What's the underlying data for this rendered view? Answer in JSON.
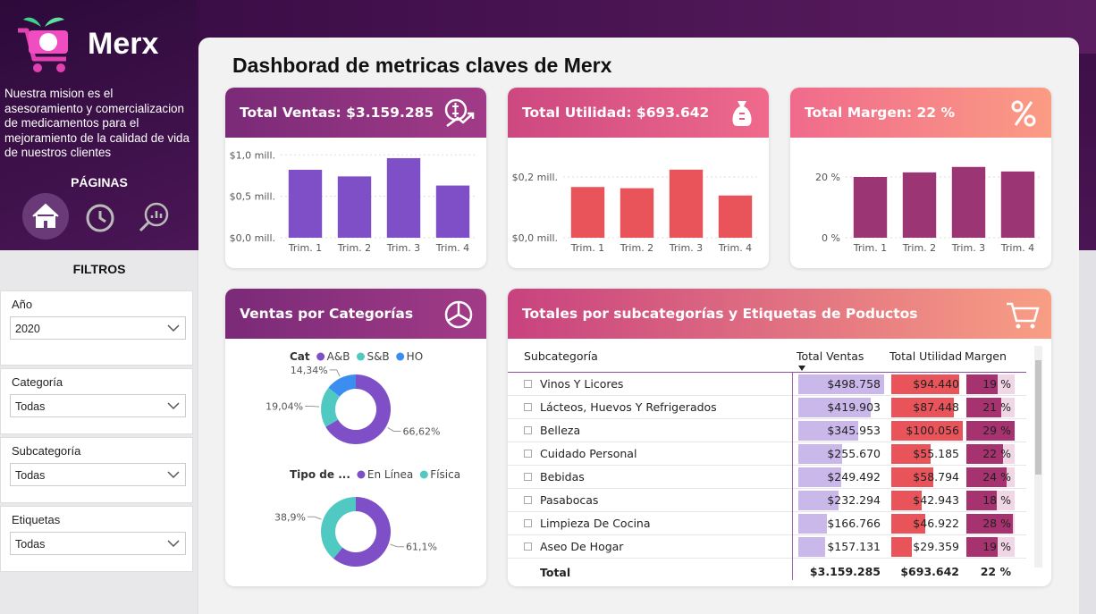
{
  "sidebar": {
    "brand": "Merx",
    "mission": "Nuestra mision es el asesoramiento y comercializacion de medicamentos para el mejoramiento de la calidad de vida de nuestros clientes",
    "pages_title": "PÁGINAS",
    "filters_title": "FILTROS",
    "filters": [
      {
        "label": "Año",
        "value": "2020"
      },
      {
        "label": "Categoría",
        "value": "Todas"
      },
      {
        "label": "Subcategoría",
        "value": "Todas"
      },
      {
        "label": "Etiquetas",
        "value": "Todas"
      }
    ]
  },
  "title": "Dashborad de metricas claves de Merx",
  "kpis": [
    {
      "title": "Total Ventas: $3.159.285",
      "chart_data": {
        "type": "bar",
        "categories": [
          "Trim. 1",
          "Trim. 2",
          "Trim. 3",
          "Trim. 4"
        ],
        "values": [
          0.82,
          0.74,
          0.96,
          0.63
        ],
        "color": "#7f4fc8",
        "ylim": [
          0,
          1.1
        ],
        "yticks": [
          {
            "value": 0,
            "label": "$0,0 mill."
          },
          {
            "value": 0.5,
            "label": "$0,5 mill."
          },
          {
            "value": 1.0,
            "label": "$1,0 mill."
          }
        ],
        "grid": true
      }
    },
    {
      "title": "Total Utilidad: $693.642",
      "chart_data": {
        "type": "bar",
        "categories": [
          "Trim. 1",
          "Trim. 2",
          "Trim. 3",
          "Trim. 4"
        ],
        "values": [
          0.167,
          0.163,
          0.224,
          0.139
        ],
        "color": "#e9545a",
        "ylim": [
          0,
          0.3
        ],
        "yticks": [
          {
            "value": 0,
            "label": "$0,0 mill."
          },
          {
            "value": 0.2,
            "label": "$0,2 mill."
          }
        ],
        "grid": true
      }
    },
    {
      "title": "Total Margen: 22 %",
      "chart_data": {
        "type": "bar",
        "categories": [
          "Trim. 1",
          "Trim. 2",
          "Trim. 3",
          "Trim. 4"
        ],
        "values": [
          20,
          21.5,
          23.3,
          21.8
        ],
        "color": "#9c3573",
        "ylim": [
          0,
          30
        ],
        "yticks": [
          {
            "value": 0,
            "label": "0 %"
          },
          {
            "value": 20,
            "label": "20 %"
          }
        ],
        "grid": true
      }
    }
  ],
  "categories_card": {
    "title": "Ventas por Categorías",
    "charts": [
      {
        "type": "donut",
        "legend_title": "Cat",
        "categories": [
          "A&B",
          "S&B",
          "HO"
        ],
        "values": [
          66.62,
          19.04,
          14.34
        ],
        "value_labels": [
          "66,62%",
          "19,04%",
          "14,34%"
        ],
        "colors": [
          "#7f4fc8",
          "#4fc9c2",
          "#3b8ef0"
        ]
      },
      {
        "type": "donut",
        "legend_title": "Tipo de ...",
        "categories": [
          "En Línea",
          "Física"
        ],
        "values": [
          61.1,
          38.9
        ],
        "value_labels": [
          "61,1%",
          "38,9%"
        ],
        "colors": [
          "#7f4fc8",
          "#4fc9c2"
        ]
      }
    ]
  },
  "table_card": {
    "title": "Totales por subcategorías y Etiquetas de Poductos",
    "columns": [
      "Subcategoría",
      "Total Ventas",
      "Total Utilidad",
      "Margen"
    ],
    "bar_colors": [
      "#cbb8ea",
      "#e9545a",
      "#a6336f"
    ],
    "rows": [
      {
        "name": "Vinos Y Licores",
        "cells": [
          {
            "value": 498758,
            "label": "$498.758"
          },
          {
            "value": 94440,
            "label": "$94.440"
          },
          {
            "value": 19,
            "label": "19 %"
          }
        ]
      },
      {
        "name": "Lácteos, Huevos Y Refrigerados",
        "cells": [
          {
            "value": 419903,
            "label": "$419.903"
          },
          {
            "value": 87448,
            "label": "$87.448"
          },
          {
            "value": 21,
            "label": "21 %"
          }
        ]
      },
      {
        "name": "Belleza",
        "cells": [
          {
            "value": 345953,
            "label": "$345.953"
          },
          {
            "value": 100056,
            "label": "$100.056"
          },
          {
            "value": 29,
            "label": "29 %"
          }
        ]
      },
      {
        "name": "Cuidado Personal",
        "cells": [
          {
            "value": 255670,
            "label": "$255.670"
          },
          {
            "value": 55185,
            "label": "$55.185"
          },
          {
            "value": 22,
            "label": "22 %"
          }
        ]
      },
      {
        "name": "Bebidas",
        "cells": [
          {
            "value": 249492,
            "label": "$249.492"
          },
          {
            "value": 58794,
            "label": "$58.794"
          },
          {
            "value": 24,
            "label": "24 %"
          }
        ]
      },
      {
        "name": "Pasabocas",
        "cells": [
          {
            "value": 232294,
            "label": "$232.294"
          },
          {
            "value": 42943,
            "label": "$42.943"
          },
          {
            "value": 18,
            "label": "18 %"
          }
        ]
      },
      {
        "name": "Limpieza De Cocina",
        "cells": [
          {
            "value": 166766,
            "label": "$166.766"
          },
          {
            "value": 46922,
            "label": "$46.922"
          },
          {
            "value": 28,
            "label": "28 %"
          }
        ]
      },
      {
        "name": "Aseo De Hogar",
        "cells": [
          {
            "value": 157131,
            "label": "$157.131"
          },
          {
            "value": 29359,
            "label": "$29.359"
          },
          {
            "value": 19,
            "label": "19 %"
          }
        ]
      }
    ],
    "total": {
      "name": "Total",
      "cells": [
        "$3.159.285",
        "$693.642",
        "22 %"
      ]
    }
  }
}
